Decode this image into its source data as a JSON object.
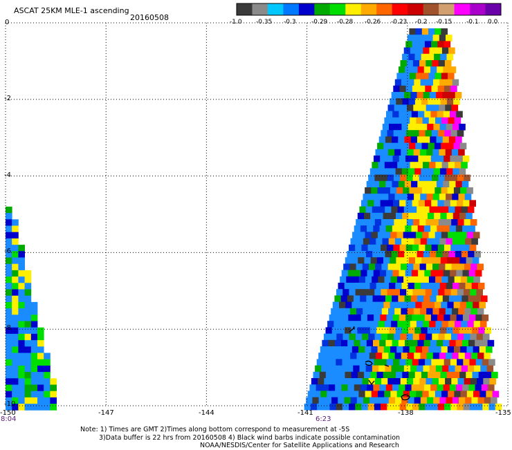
{
  "header": {
    "title": "ASCAT 25KM MLE-1 ascending",
    "date": "20160508"
  },
  "colorbar": {
    "colors": [
      "#3a3a3a",
      "#8a8a8a",
      "#00c8ff",
      "#0078ff",
      "#0000cc",
      "#00aa00",
      "#00dd00",
      "#ffee00",
      "#ffaa00",
      "#ff6600",
      "#ff0000",
      "#cc0000",
      "#a0522d",
      "#d2a070",
      "#ff00ff",
      "#aa00cc",
      "#6a00aa"
    ],
    "tick_labels": [
      "-1.0",
      "-0.35",
      "-0.3",
      "-0.29",
      "-0.28",
      "-0.26",
      "-0.23",
      "-0.2",
      "-0.15",
      "-0.1",
      "0.0"
    ]
  },
  "axes": {
    "x_ticks": [
      "-150",
      "-147",
      "-144",
      "-141",
      "-138",
      "-135"
    ],
    "y_ticks": [
      "0",
      "-2",
      "-4",
      "-6",
      "-8",
      "-10"
    ],
    "time_labels": [
      "8:04",
      "6:23"
    ]
  },
  "notes": {
    "line1": "Note: 1) Times are GMT 2)Times along bottom correspond to measurement at -5S",
    "line2": "3)Data buffer is 22 hrs from 20160508 4) Black wind barbs indicate possible contamination",
    "line3": "NOAA/NESDIS/Center for Satellite Applications and Research"
  },
  "map_data": {
    "lon_range": [
      -150,
      -135
    ],
    "lat_range": [
      -10,
      0
    ],
    "swaths": [
      {
        "name": "east",
        "top_left_lon": -137.9,
        "top_right_lon": -136.8,
        "bottom_left_lon": -141.1,
        "bottom_right_lon": -135.3
      },
      {
        "name": "west",
        "top_lat": -4.8,
        "left_lon": -150.0,
        "bottom_right_lon": -148.6
      }
    ]
  }
}
